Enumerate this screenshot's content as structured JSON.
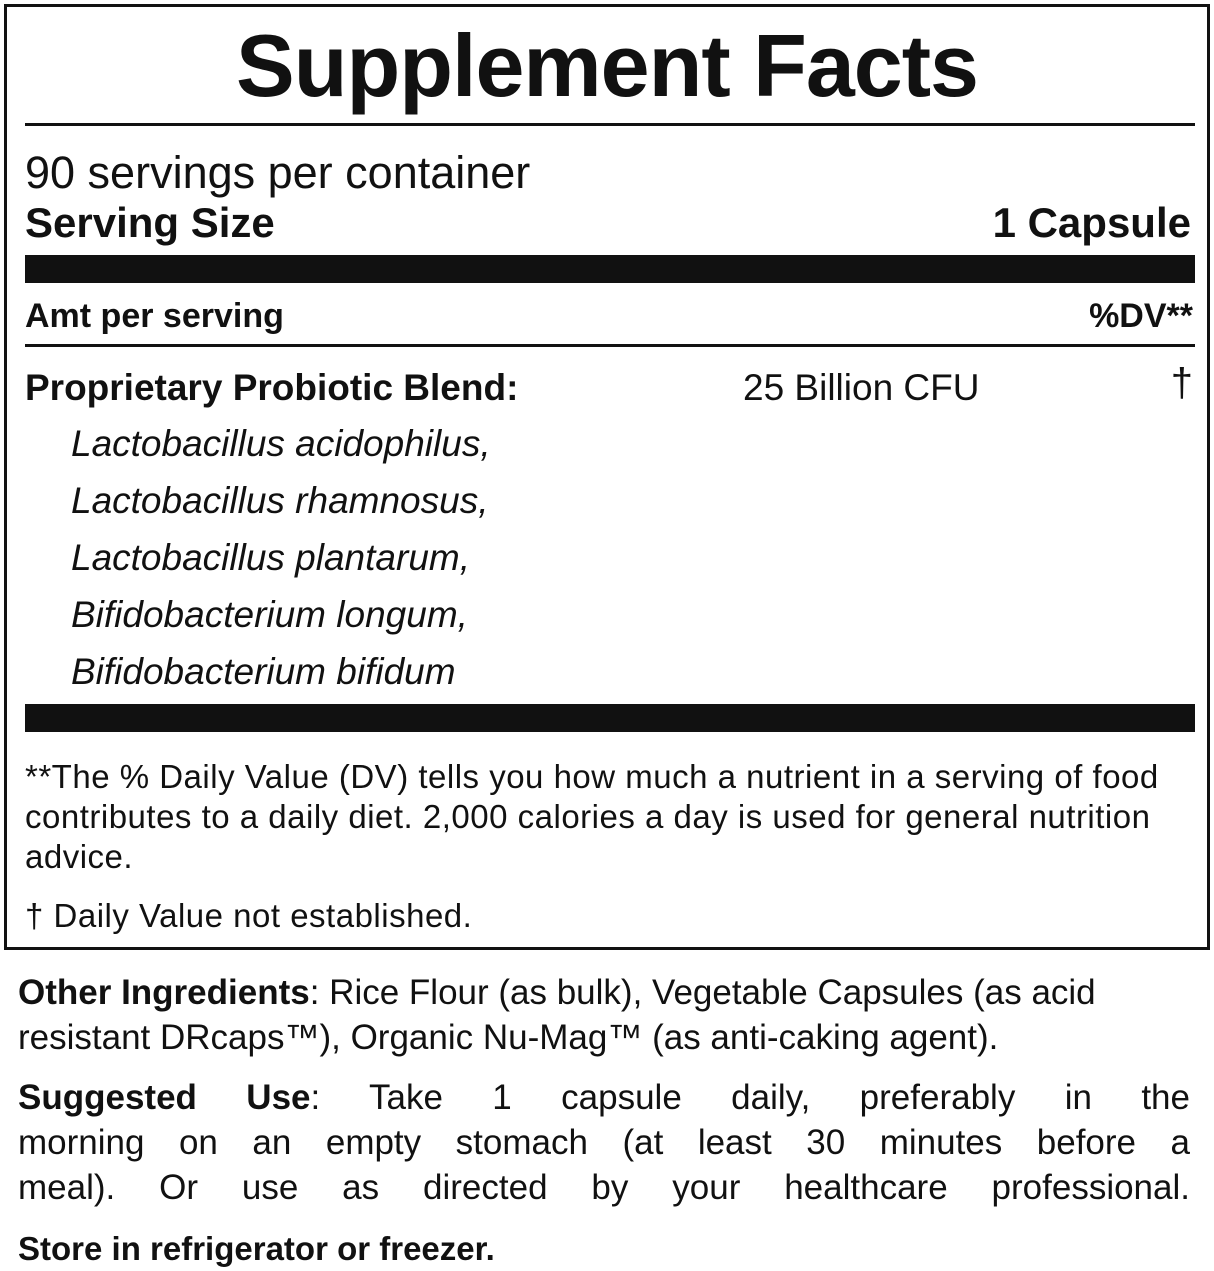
{
  "title": "Supplement Facts",
  "servings_per_container": "90 servings per container",
  "serving_size": {
    "label": "Serving Size",
    "value": "1 Capsule"
  },
  "header": {
    "amount_label": "Amt per serving",
    "dv_label": "%DV**"
  },
  "blend": {
    "name": "Proprietary Probiotic Blend:",
    "amount": "25 Billion CFU",
    "dv": "†",
    "strains": [
      "Lactobacillus acidophilus,",
      "Lactobacillus rhamnosus,",
      "Lactobacillus plantarum,",
      "Bifidobacterium longum,",
      "Bifidobacterium bifidum"
    ]
  },
  "footnotes": {
    "dv_note": "**The % Daily Value (DV) tells you how much a nutrient in a serving of food contributes to a daily diet. 2,000 calories a day is used for general nutrition advice.",
    "dagger_note": "† Daily Value not established."
  },
  "other_ingredients": {
    "label": "Other Ingredients",
    "text": ": Rice Flour (as bulk), Vegetable Capsules (as acid resistant DRcaps™), Organic Nu-Mag™ (as anti-caking agent)."
  },
  "suggested_use": {
    "label": "Suggested Use",
    "line1": ": Take 1 capsule daily, preferably in the",
    "line2": "morning on an empty stomach (at least 30 minutes before a",
    "line3": "meal). Or use as directed by your healthcare professional."
  },
  "storage": "Store in refrigerator or freezer."
}
